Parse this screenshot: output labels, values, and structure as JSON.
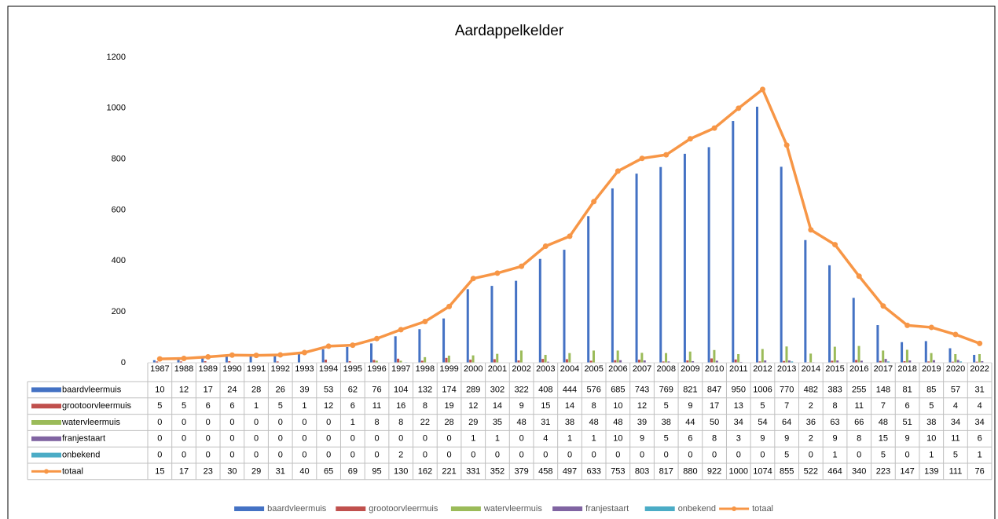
{
  "chart_data": {
    "type": "bar",
    "title": "Aardappelkelder",
    "categories": [
      "1987",
      "1988",
      "1989",
      "1990",
      "1991",
      "1992",
      "1993",
      "1994",
      "1995",
      "1996",
      "1997",
      "1998",
      "1999",
      "2000",
      "2001",
      "2002",
      "2003",
      "2004",
      "2005",
      "2006",
      "2007",
      "2008",
      "2009",
      "2010",
      "2011",
      "2012",
      "2013",
      "2014",
      "2015",
      "2016",
      "2017",
      "2018",
      "2019",
      "2020",
      "2022"
    ],
    "series": [
      {
        "name": "baardvleermuis",
        "color": "#4472c4",
        "values": [
          10,
          12,
          17,
          24,
          28,
          26,
          39,
          53,
          62,
          76,
          104,
          132,
          174,
          289,
          302,
          322,
          408,
          444,
          576,
          685,
          743,
          769,
          821,
          847,
          950,
          1006,
          770,
          482,
          383,
          255,
          148,
          81,
          85,
          57,
          31
        ]
      },
      {
        "name": "grootoorvleermuis",
        "color": "#c0504d",
        "values": [
          5,
          5,
          6,
          6,
          1,
          5,
          1,
          12,
          6,
          11,
          16,
          8,
          19,
          12,
          14,
          9,
          15,
          14,
          8,
          10,
          12,
          5,
          9,
          17,
          13,
          5,
          7,
          2,
          8,
          11,
          7,
          6,
          5,
          4,
          4
        ]
      },
      {
        "name": "watervleermuis",
        "color": "#9bbb59",
        "values": [
          0,
          0,
          0,
          0,
          0,
          0,
          0,
          0,
          1,
          8,
          8,
          22,
          28,
          29,
          35,
          48,
          31,
          38,
          48,
          48,
          39,
          38,
          44,
          50,
          34,
          54,
          64,
          36,
          63,
          66,
          48,
          51,
          38,
          34,
          34
        ]
      },
      {
        "name": "franjestaart",
        "color": "#8064a2",
        "values": [
          0,
          0,
          0,
          0,
          0,
          0,
          0,
          0,
          0,
          0,
          0,
          0,
          0,
          1,
          1,
          0,
          4,
          1,
          1,
          10,
          9,
          5,
          6,
          8,
          3,
          9,
          9,
          2,
          9,
          8,
          15,
          9,
          10,
          11,
          6
        ]
      },
      {
        "name": "onbekend",
        "color": "#4bacc6",
        "values": [
          0,
          0,
          0,
          0,
          0,
          0,
          0,
          0,
          0,
          0,
          2,
          0,
          0,
          0,
          0,
          0,
          0,
          0,
          0,
          0,
          0,
          0,
          0,
          0,
          0,
          0,
          5,
          0,
          1,
          0,
          5,
          0,
          1,
          5,
          1
        ]
      },
      {
        "name": "totaal",
        "color": "#f79646",
        "type": "line",
        "values": [
          15,
          17,
          23,
          30,
          29,
          31,
          40,
          65,
          69,
          95,
          130,
          162,
          221,
          331,
          352,
          379,
          458,
          497,
          633,
          753,
          803,
          817,
          880,
          922,
          1000,
          1074,
          855,
          522,
          464,
          340,
          223,
          147,
          139,
          111,
          76
        ]
      }
    ],
    "ylim": [
      0,
      1200
    ],
    "yticks": [
      0,
      200,
      400,
      600,
      800,
      1000,
      1200
    ],
    "grid": false,
    "data_table": true,
    "legend": "bottom"
  }
}
